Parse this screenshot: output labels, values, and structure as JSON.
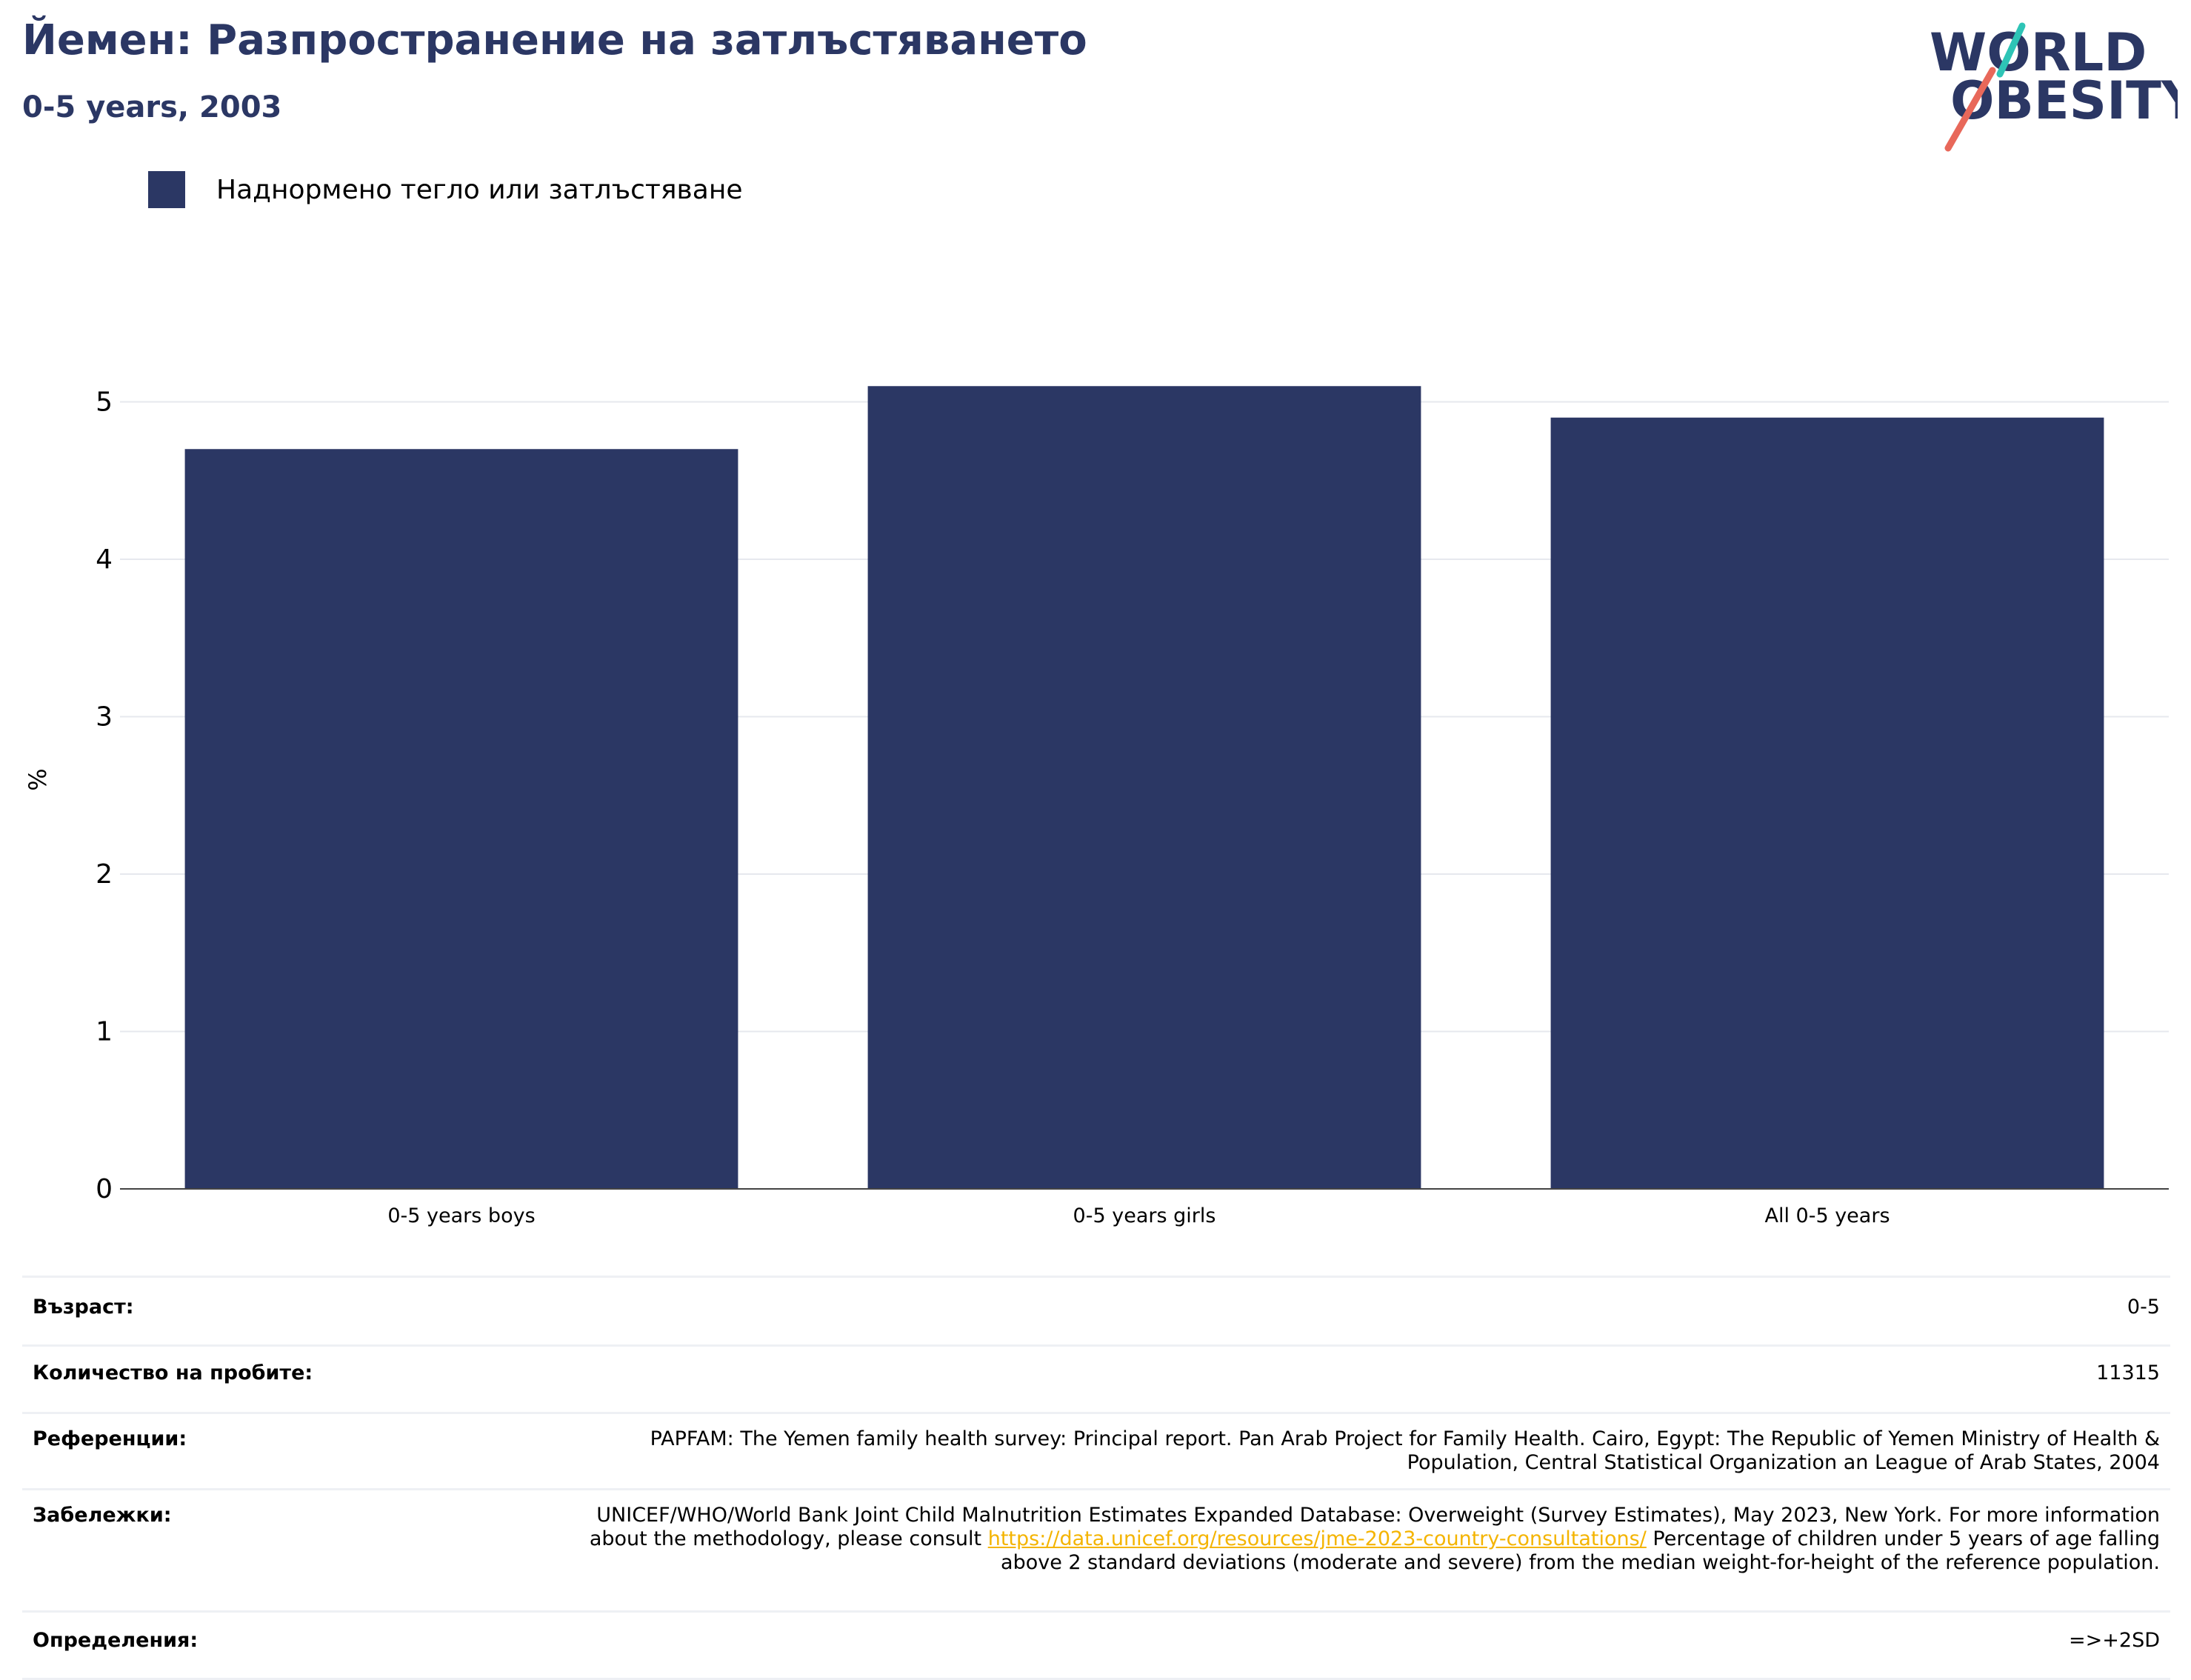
{
  "header": {
    "title": "Йемен: Разпространение на затлъстяването",
    "subtitle": "0-5 years, 2003"
  },
  "logo": {
    "line1": "WORLD",
    "line2": "OBESITY"
  },
  "colors": {
    "bar": "#2b3764",
    "title": "#2b3764",
    "link": "#f4b400",
    "logo_teal": "#2ec4b6",
    "logo_coral": "#e8685a"
  },
  "chart_data": {
    "type": "bar",
    "categories": [
      "0-5 years boys",
      "0-5 years girls",
      "All 0-5 years"
    ],
    "series": [
      {
        "name": "Наднормено тегло или затлъстяване",
        "values": [
          4.7,
          5.1,
          4.9
        ]
      }
    ],
    "ylabel": "%",
    "xlabel": "",
    "ylim": [
      0,
      5.2
    ],
    "yticks": [
      0,
      1,
      2,
      3,
      4,
      5
    ],
    "grid": true,
    "legend_position": "top-left"
  },
  "info": {
    "age_label": "Възраст:",
    "age_value": "0-5",
    "sample_label": "Количество на пробите:",
    "sample_value": "11315",
    "refs_label": "Референции:",
    "refs_value": "PAPFAM: The Yemen family health survey: Principal report. Pan Arab Project for Family Health. Cairo, Egypt: The Republic of Yemen Ministry of Health & Population, Central Statistical Organization an League of Arab States, 2004",
    "notes_label": "Забележки:",
    "notes_before": "UNICEF/WHO/World Bank Joint Child Malnutrition Estimates Expanded Database: Overweight (Survey Estimates), May 2023, New York. For more information about the methodology, please consult ",
    "notes_link": "https://data.unicef.org/resources/jme-2023-country-consultations/",
    "notes_after": " Percentage of children under 5 years of age falling above 2 standard deviations (moderate and severe) from the median weight-for-height of the reference population.",
    "defs_label": "Определения:",
    "defs_value": "=>+2SD"
  }
}
